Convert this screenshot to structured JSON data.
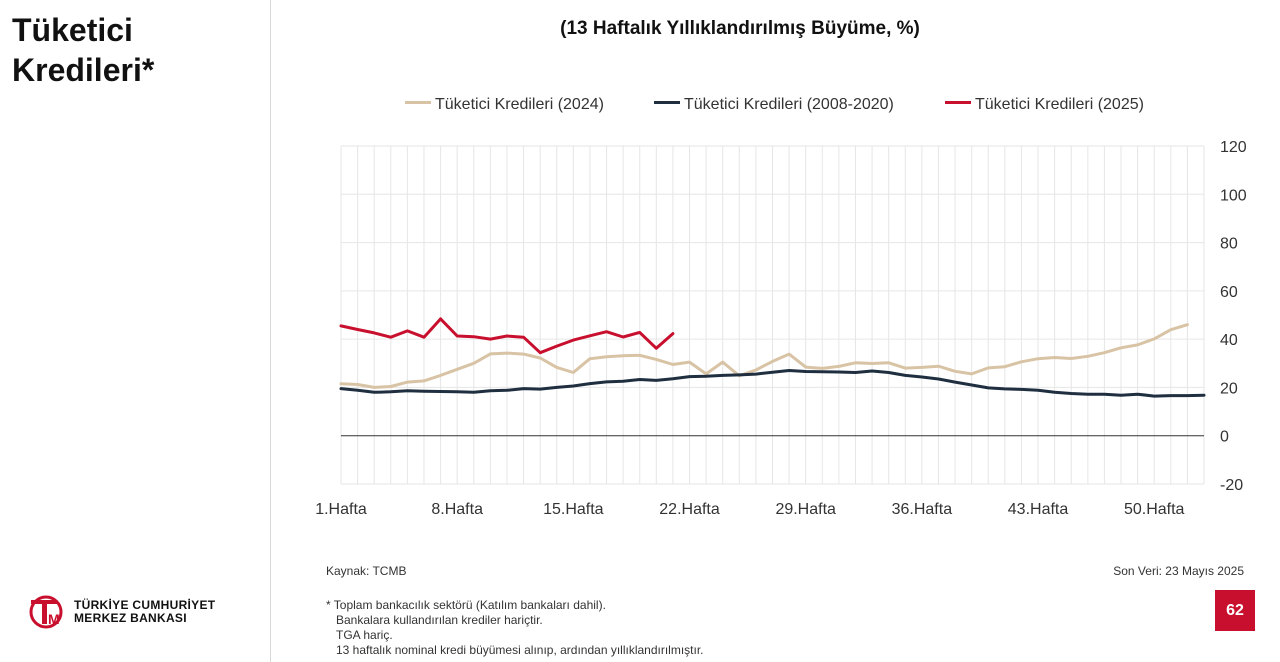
{
  "page": {
    "title_lines": [
      "Tüketici",
      "Kredileri*"
    ],
    "page_number": "62",
    "source": "Kaynak: TCMB",
    "last_data": "Son Veri: 23 Mayıs 2025",
    "notes": [
      "* Toplam bankacılık sektörü (Katılım bankaları dahil).",
      "Bankalara kullandırılan krediler hariçtir.",
      "TGA hariç.",
      "13 haftalık nominal kredi büyümesi alınıp, ardından yıllıklandırılmıştır."
    ],
    "logo": {
      "line1": "TÜRKİYE CUMHURİYET",
      "line2": "MERKEZ BANKASI",
      "mark": "TCMB"
    }
  },
  "colors": {
    "s2024": "#d8c3a5",
    "s2008": "#1f2f3f",
    "s2025": "#c8102e",
    "grid": "#e6e6e6",
    "zero": "#333333",
    "accent": "#c8102e"
  },
  "chart_data": {
    "type": "line",
    "title": "(13 Haftalık Yıllıklandırılmış Büyüme, %)",
    "x_tick_labels": [
      "1.Hafta",
      "8.Hafta",
      "15.Hafta",
      "22.Hafta",
      "29.Hafta",
      "36.Hafta",
      "43.Hafta",
      "50.Hafta"
    ],
    "x_tick_weeks": [
      1,
      8,
      15,
      22,
      29,
      36,
      43,
      50
    ],
    "x_range": [
      1,
      53
    ],
    "ylim": [
      -20,
      120
    ],
    "y_ticks": [
      120,
      100,
      80,
      60,
      40,
      20,
      0,
      -20
    ],
    "y_axis_side": "right",
    "grid": true,
    "legend_position": "top",
    "series": [
      {
        "name": "Tüketici Kredileri (2024)",
        "color_key": "s2024",
        "start_week": 1,
        "values": [
          21.5,
          21.2,
          20.0,
          20.4,
          22.2,
          22.7,
          25.0,
          27.5,
          30.0,
          33.9,
          34.2,
          33.8,
          32.2,
          28.3,
          26.2,
          31.9,
          32.7,
          33.1,
          33.3,
          31.6,
          29.5,
          30.5,
          25.6,
          30.5,
          24.8,
          27.2,
          30.8,
          33.8,
          28.4,
          27.9,
          28.7,
          30.2,
          29.9,
          30.2,
          28.0,
          28.3,
          28.8,
          26.7,
          25.6,
          28.1,
          28.6,
          30.6,
          31.9,
          32.4,
          32.0,
          32.9,
          34.4,
          36.4,
          37.6,
          40.1,
          43.9,
          46.0
        ]
      },
      {
        "name": "Tüketici Kredileri (2008-2020)",
        "color_key": "s2008",
        "start_week": 1,
        "values": [
          19.5,
          18.8,
          18.0,
          18.2,
          18.6,
          18.4,
          18.3,
          18.2,
          18.0,
          18.6,
          18.8,
          19.5,
          19.3,
          20.0,
          20.6,
          21.6,
          22.3,
          22.6,
          23.3,
          22.9,
          23.6,
          24.5,
          24.6,
          25.0,
          25.2,
          25.5,
          26.3,
          27.0,
          26.6,
          26.5,
          26.4,
          26.2,
          26.8,
          26.2,
          25.0,
          24.3,
          23.5,
          22.2,
          21.0,
          19.8,
          19.4,
          19.2,
          18.8,
          18.0,
          17.5,
          17.2,
          17.2,
          16.8,
          17.2,
          16.4,
          16.6,
          16.6,
          16.8
        ]
      },
      {
        "name": "Tüketici Kredileri (2025)",
        "color_key": "s2025",
        "start_week": 1,
        "values": [
          45.5,
          44.0,
          42.6,
          40.8,
          43.4,
          40.8,
          48.4,
          41.3,
          41.0,
          40.0,
          41.3,
          40.8,
          34.4,
          37.1,
          39.6,
          41.4,
          43.1,
          40.9,
          42.8,
          36.2,
          42.3
        ]
      }
    ]
  }
}
